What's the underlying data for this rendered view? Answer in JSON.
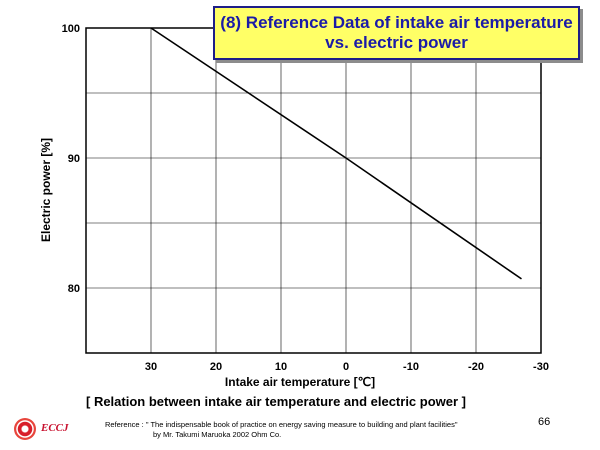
{
  "header": {
    "title_line1": "(8) Reference Data of intake air temperature",
    "title_line2": "vs. electric power"
  },
  "chart_data": {
    "type": "line",
    "title": "(8) Reference Data of intake air temperature vs. electric power",
    "xlabel": "Intake air temperature [℃]",
    "ylabel": "Electric power [%]",
    "x_ticks": [
      "30",
      "20",
      "10",
      "0",
      "-10",
      "-20",
      "-30"
    ],
    "y_ticks": [
      "100",
      "90",
      "80"
    ],
    "xlim": [
      40,
      -30
    ],
    "ylim": [
      75,
      100
    ],
    "x_reversed": true,
    "grid": true,
    "series": [
      {
        "name": "Electric power",
        "x": [
          30,
          0,
          -27
        ],
        "y": [
          100,
          90,
          80.7
        ]
      }
    ]
  },
  "caption": "[ Relation between intake air temperature and electric power ]",
  "reference": {
    "line1": "Reference : \" The indispensable book of practice on energy saving measure to  building and plant facilities\"",
    "line2": "by Mr. Takumi Maruoka  2002 Ohm Co."
  },
  "page_number": "66",
  "logo": {
    "text": "ECCJ"
  },
  "colors": {
    "title_bg": "#ffff66",
    "title_text": "#1b1ba8",
    "line": "#000000",
    "logo_red": "#d81e2a"
  }
}
